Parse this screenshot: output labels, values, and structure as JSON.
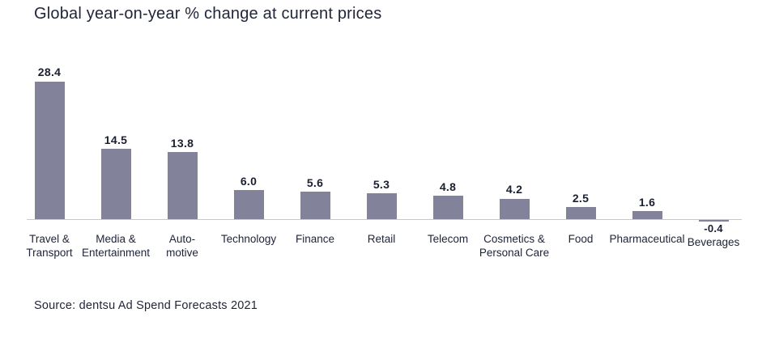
{
  "page": {
    "title": "Global year-on-year % change at current prices",
    "source": "Source: dentsu Ad Spend Forecasts 2021"
  },
  "colors": {
    "bar": "#82839B",
    "axis": "#C7C7CC",
    "text": "#222639"
  },
  "chart_data": {
    "type": "bar",
    "title": "Global year-on-year % change at current prices",
    "categories": [
      "Travel &\nTransport",
      "Media &\nEntertainment",
      "Auto-\nmotive",
      "Technology",
      "Finance",
      "Retail",
      "Telecom",
      "Cosmetics &\nPersonal Care",
      "Food",
      "Pharmaceutical",
      "Beverages"
    ],
    "values": [
      28.4,
      14.5,
      13.8,
      6.0,
      5.6,
      5.3,
      4.8,
      4.2,
      2.5,
      1.6,
      -0.4
    ],
    "value_labels": [
      "28.4",
      "14.5",
      "13.8",
      "6.0",
      "5.6",
      "5.3",
      "4.8",
      "4.2",
      "2.5",
      "1.6",
      "-0.4"
    ],
    "xlabel": "",
    "ylabel": "",
    "ylim": [
      -1,
      30
    ],
    "grid": false,
    "legend": false,
    "data_labels": true,
    "source": "Source: dentsu Ad Spend Forecasts 2021"
  }
}
